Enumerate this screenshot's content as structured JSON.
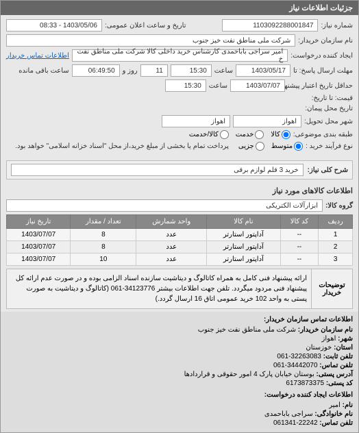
{
  "header": {
    "title": "جزئیات اطلاعات نیاز"
  },
  "top": {
    "shomareNiazLabel": "شماره نیاز:",
    "shomareNiaz": "1103092288001847",
    "tarikhElanLabel": "تاریخ و ساعت اعلان عمومی:",
    "tarikhElan": "1403/05/06 - 08:33",
    "namKharidarLabel": "نام سازمان خریدار:",
    "namKharidar": "شرکت ملی مناطق نفت خیز جنوب",
    "ijadKonandeLabel": "ایجاد کننده درخواست:",
    "ijadKonande": "امیر  سراجی باباحمدی  کارشناس خرید داخلی کالا شرکت ملی مناطق نفت خ",
    "etelaatTamasLink": "اطلاعات تماس خریدار",
    "mohlatErsalLabel": "مهلت ارسال پاسخ: تا",
    "mohlatErsalDate": "1403/05/17",
    "saatLabel": "ساعت",
    "mohlatErsalTime": "15:30",
    "ruzLabel": "روز و",
    "ruz": "11",
    "saatBaghiLabel": "ساعت باقی مانده",
    "saatBaghi": "06:49:50",
    "hadaghalLabel": "حداقل تاریخ اعتبار پیشنهاد تا تاریخ:",
    "hadaghalDate": "1403/07/07",
    "hadaghalTime": "15:30",
    "gheimatLabel": "قیمت: تا تاریخ:",
    "tarikhMahalLabel": "تاریخ محل پیمان:",
    "shahrLabel": "شهر محل تحویل:",
    "shahr1": "اهواز",
    "shahr2": "اهواز",
    "tabagheLabel": "طبقه بندی موضوعی:",
    "kalaRadio": "کالا",
    "khadamatRadio": "خدمت",
    "kalaKhadamatRadio": "کالا/خدمت",
    "noeFarayandLabel": "نوع فرآیند خرید :",
    "motavasetRadio": "متوسط",
    "joziRadio": "جزیی",
    "noteText": "پرداخت تمام یا بخشی از مبلغ خرید،از محل \"اسناد خزانه اسلامی\" خواهد بود."
  },
  "sharh": {
    "label": "شرح کلی نیاز:",
    "value": "خرید 3 قلم لوازم برقی"
  },
  "kalaSection": {
    "title": "اطلاعات کالاهای مورد نیاز",
    "groupLabel": "گروه کالا:",
    "groupValue": "ابزارآلات الکتریکی"
  },
  "table": {
    "columns": [
      "ردیف",
      "کد کالا",
      "نام کالا",
      "واحد شمارش",
      "تعداد / مقدار",
      "تاریخ نیاز"
    ],
    "rows": [
      [
        "1",
        "--",
        "آداپتور استارتر",
        "عدد",
        "8",
        "1403/07/07"
      ],
      [
        "2",
        "--",
        "آداپتور استارتر",
        "عدد",
        "8",
        "1403/07/07"
      ],
      [
        "3",
        "--",
        "آداپتور استارتر",
        "عدد",
        "10",
        "1403/07/07"
      ]
    ]
  },
  "desc": {
    "label": "توضیحات خریدار",
    "text": "ارائه پیشنهاد فنی کامل به همراه کاتالوگ و دیتاشیت سازنده اسناد الزامی بوده و در صورت عدم ارائه کل پیشنهاد فنی مردود میگردد. تلفن جهت اطلاعات بیشتر 34123776-061 (کاتالوگ و دیتاشیت به صورت پستی به واحد 102 خرید عمومی اتاق 16 ارسال گردد.)"
  },
  "contact": {
    "title1": "اطلاعات تماس سازمان خریدار:",
    "lines1": [
      {
        "k": "نام سازمان خریدار:",
        "v": "شرکت ملی مناطق نفت خیز جنوب"
      },
      {
        "k": "شهر:",
        "v": "اهواز"
      },
      {
        "k": "استان:",
        "v": "خوزستان"
      },
      {
        "k": "تلفن ثابت:",
        "v": "32263083-061"
      },
      {
        "k": "تلفن تماس:",
        "v": "34442070-061"
      },
      {
        "k": "آدرس پستی:",
        "v": "بوستان خیابان پارک 4 امور حقوقی و قراردادها"
      },
      {
        "k": "کد پستی:",
        "v": "6173873375"
      }
    ],
    "title2": "اطلاعات ایجاد کننده درخواست:",
    "lines2": [
      {
        "k": "نام:",
        "v": "امیر"
      },
      {
        "k": "نام خانوادگی:",
        "v": "سراجی باباحمدی"
      },
      {
        "k": "تلفن تماس:",
        "v": "22242-061341"
      }
    ]
  }
}
